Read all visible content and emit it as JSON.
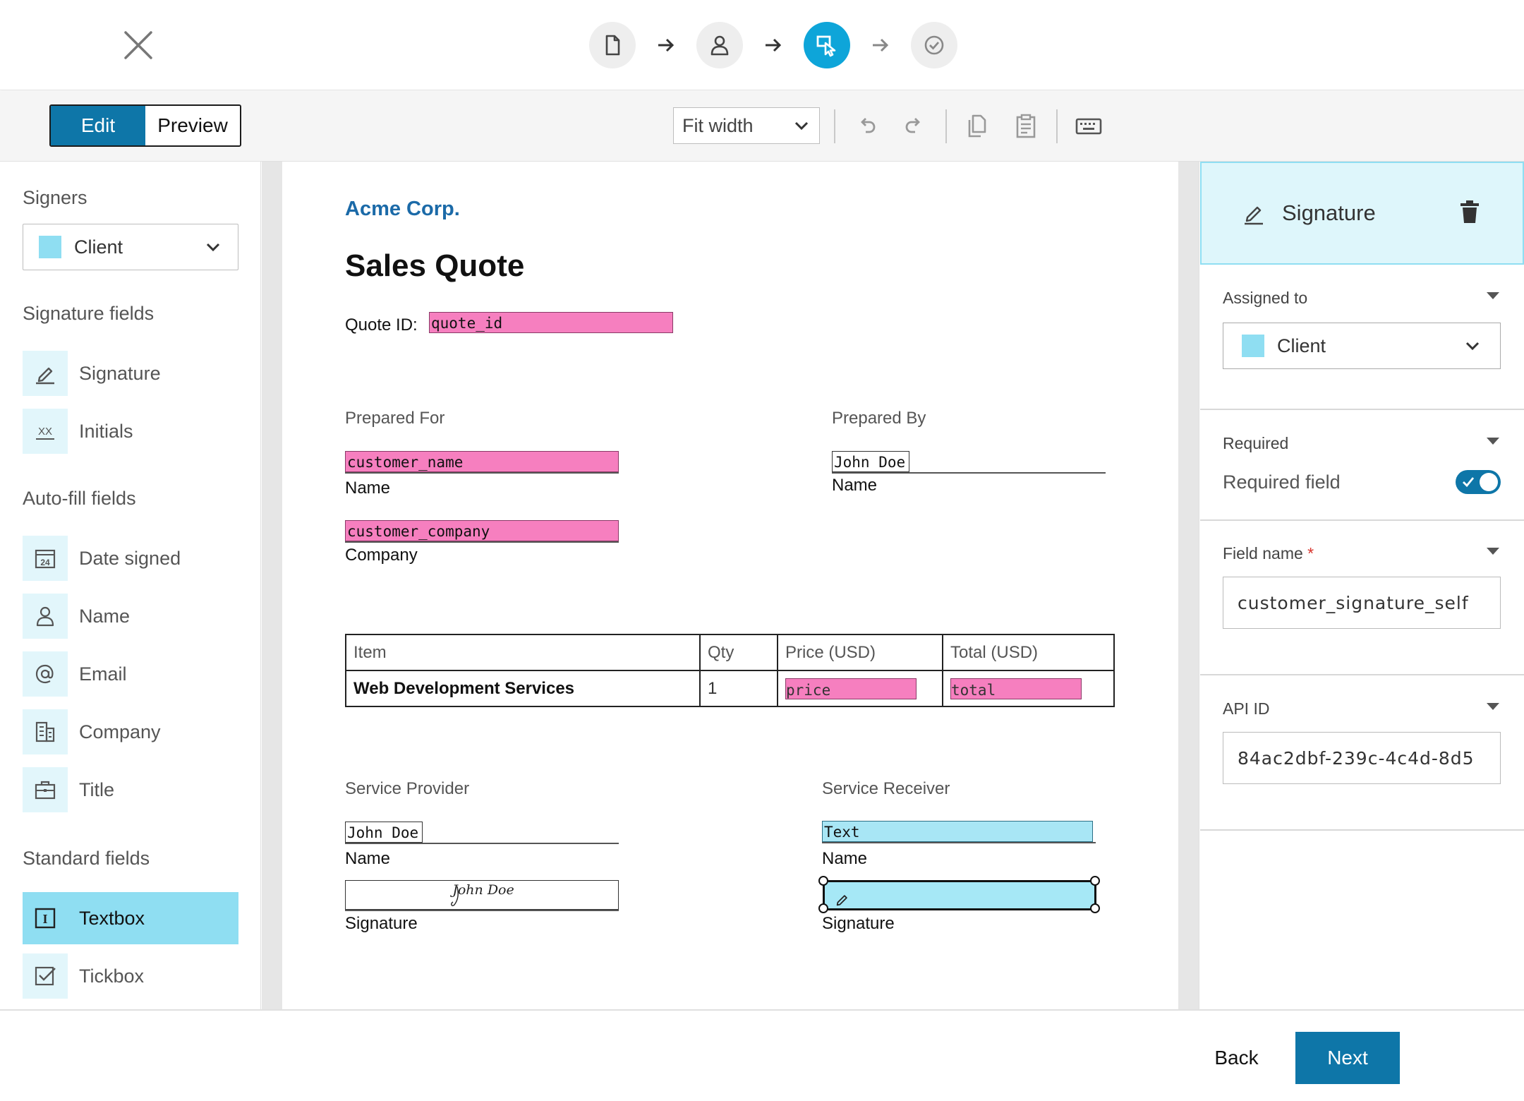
{
  "header": {
    "steps": [
      {
        "icon": "document-icon",
        "state": "done"
      },
      {
        "icon": "user-icon",
        "state": "done"
      },
      {
        "icon": "place-fields-icon",
        "state": "active"
      },
      {
        "icon": "check-circle-icon",
        "state": "todo"
      }
    ]
  },
  "toolbar": {
    "edit_label": "Edit",
    "preview_label": "Preview",
    "zoom_value": "Fit width"
  },
  "left": {
    "signers_title": "Signers",
    "signer_value": "Client",
    "signature_fields_title": "Signature fields",
    "signature_fields": [
      "Signature",
      "Initials"
    ],
    "autofill_title": "Auto-fill fields",
    "autofill_fields": [
      "Date signed",
      "Name",
      "Email",
      "Company",
      "Title"
    ],
    "standard_title": "Standard fields",
    "standard_fields": [
      "Textbox",
      "Tickbox"
    ],
    "calendar_number": "24",
    "initials_glyph": "XX",
    "textbox_glyph": "I"
  },
  "document": {
    "brand": "Acme Corp.",
    "title": "Sales Quote",
    "quote_id_label": "Quote ID:",
    "quote_id_field": "quote_id",
    "prepared_for": "Prepared For",
    "prepared_by": "Prepared By",
    "customer_name_field": "customer_name",
    "name_label": "Name",
    "customer_company_field": "customer_company",
    "company_label": "Company",
    "prepared_by_name": "John Doe",
    "table": {
      "headers": [
        "Item",
        "Qty",
        "Price (USD)",
        "Total (USD)"
      ],
      "row": {
        "item": "Web Development Services",
        "qty": "1",
        "price_field": "price",
        "total_field": "total"
      }
    },
    "service_provider": "Service Provider",
    "service_receiver": "Service Receiver",
    "provider_name": "John Doe",
    "provider_signature": "John Doe",
    "receiver_name_field": "Text",
    "signature_label": "Signature"
  },
  "right": {
    "header_title": "Signature",
    "assigned_to_title": "Assigned to",
    "assigned_value": "Client",
    "required_title": "Required",
    "required_label": "Required field",
    "required_on": true,
    "field_name_title": "Field name",
    "field_name_required_mark": "*",
    "field_name_value": "customer_signature_self",
    "api_id_title": "API ID",
    "api_id_value": "84ac2dbf-239c-4c4d-8d5"
  },
  "footer": {
    "back_label": "Back",
    "next_label": "Next"
  },
  "colors": {
    "accent": "#0e76a8",
    "active_step": "#0ea5d9",
    "signer_client": "#8fdef2",
    "field_pink": "#f67fbf"
  }
}
